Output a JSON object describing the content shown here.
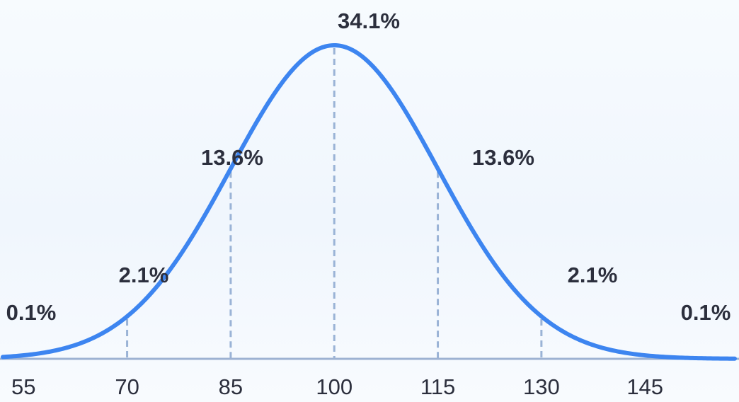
{
  "chart_data": {
    "type": "line",
    "title": "",
    "xlabel": "",
    "ylabel": "",
    "mean": 100,
    "std_dev": 15,
    "xlim": [
      52,
      158
    ],
    "x_ticks": [
      {
        "value": 55,
        "label": "55"
      },
      {
        "value": 70,
        "label": "70"
      },
      {
        "value": 85,
        "label": "85"
      },
      {
        "value": 100,
        "label": "100"
      },
      {
        "value": 115,
        "label": "115"
      },
      {
        "value": 130,
        "label": "130"
      },
      {
        "value": 145,
        "label": "145"
      }
    ],
    "marker_lines": [
      70,
      85,
      100,
      115,
      130
    ],
    "region_labels": [
      {
        "text": "0.1%",
        "position": "left-tail"
      },
      {
        "text": "2.1%",
        "position": "left"
      },
      {
        "text": "13.6%",
        "position": "center-left"
      },
      {
        "text": "34.1%",
        "position": "peak"
      },
      {
        "text": "13.6%",
        "position": "center-right"
      },
      {
        "text": "2.1%",
        "position": "right"
      },
      {
        "text": "0.1%",
        "position": "right-tail"
      }
    ],
    "colors": {
      "curve": "#3d85f0",
      "axis": "#9db2d2",
      "marker": "#9ab3d6",
      "text": "#2c2f3d"
    },
    "grid": false,
    "legend": "none"
  }
}
